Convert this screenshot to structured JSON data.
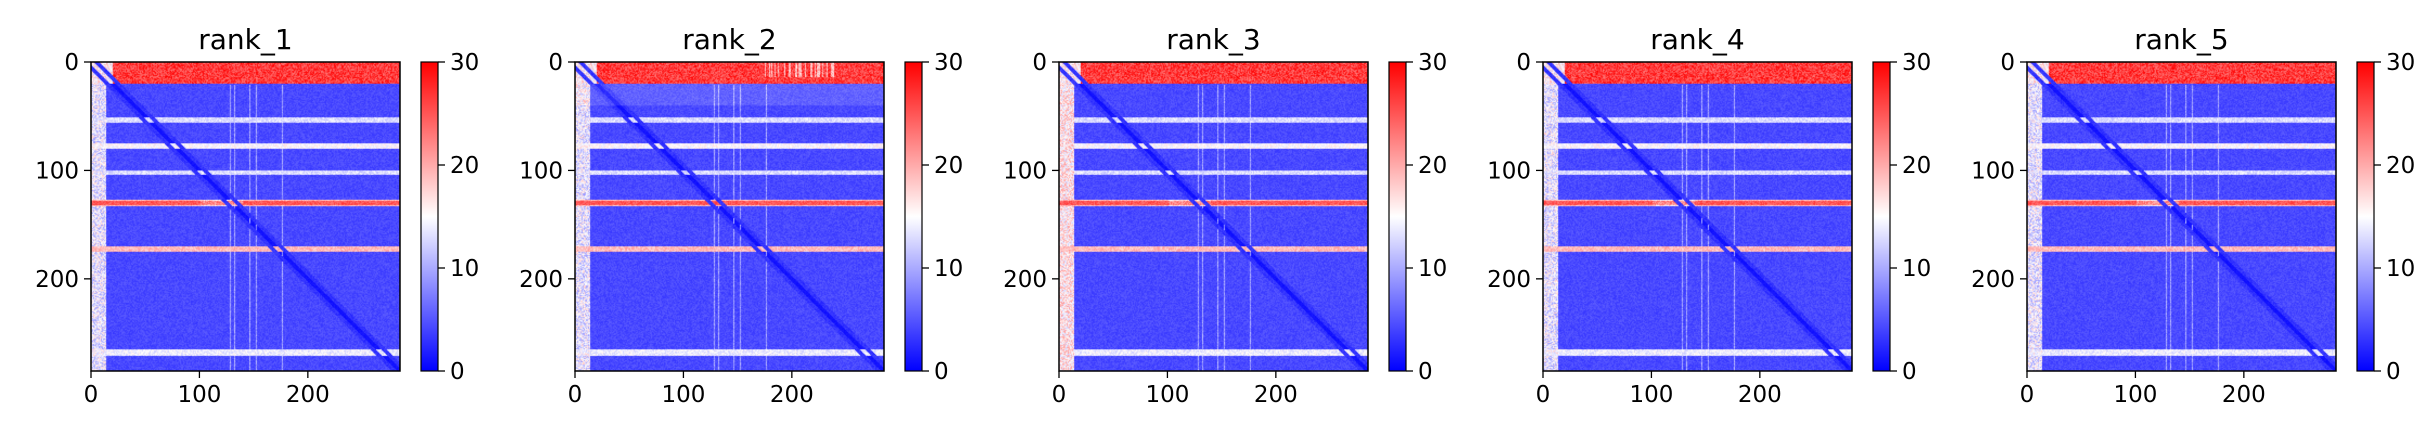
{
  "figure": {
    "background": "#ffffff",
    "colormap": "bwr",
    "colormap_stops": [
      "#0000ff",
      "#ffffff",
      "#ff0000"
    ]
  },
  "chart_data": [
    {
      "type": "heatmap",
      "title": "rank_1",
      "variant": 0,
      "xlabel": "",
      "ylabel": "",
      "xlim": [
        0,
        285
      ],
      "ylim": [
        285,
        0
      ],
      "xticks": [
        0,
        100,
        200
      ],
      "yticks": [
        0,
        100,
        200
      ],
      "colorbar": {
        "ticks": [
          0,
          10,
          20,
          30
        ],
        "range": [
          0,
          30
        ]
      }
    },
    {
      "type": "heatmap",
      "title": "rank_2",
      "variant": 1,
      "xlabel": "",
      "ylabel": "",
      "xlim": [
        0,
        285
      ],
      "ylim": [
        285,
        0
      ],
      "xticks": [
        0,
        100,
        200
      ],
      "yticks": [
        0,
        100,
        200
      ],
      "colorbar": {
        "ticks": [
          0,
          10,
          20,
          30
        ],
        "range": [
          0,
          30
        ]
      }
    },
    {
      "type": "heatmap",
      "title": "rank_3",
      "variant": 2,
      "xlabel": "",
      "ylabel": "",
      "xlim": [
        0,
        285
      ],
      "ylim": [
        285,
        0
      ],
      "xticks": [
        0,
        100,
        200
      ],
      "yticks": [
        0,
        100,
        200
      ],
      "colorbar": {
        "ticks": [
          0,
          10,
          20,
          30
        ],
        "range": [
          0,
          30
        ]
      }
    },
    {
      "type": "heatmap",
      "title": "rank_4",
      "variant": 3,
      "xlabel": "",
      "ylabel": "",
      "xlim": [
        0,
        285
      ],
      "ylim": [
        285,
        0
      ],
      "xticks": [
        0,
        100,
        200
      ],
      "yticks": [
        0,
        100,
        200
      ],
      "colorbar": {
        "ticks": [
          0,
          10,
          20,
          30
        ],
        "range": [
          0,
          30
        ]
      }
    },
    {
      "type": "heatmap",
      "title": "rank_5",
      "variant": 4,
      "xlabel": "",
      "ylabel": "",
      "xlim": [
        0,
        285
      ],
      "ylim": [
        285,
        0
      ],
      "xticks": [
        0,
        100,
        200
      ],
      "yticks": [
        0,
        100,
        200
      ],
      "colorbar": {
        "ticks": [
          0,
          10,
          20,
          30
        ],
        "range": [
          0,
          30
        ]
      }
    }
  ]
}
